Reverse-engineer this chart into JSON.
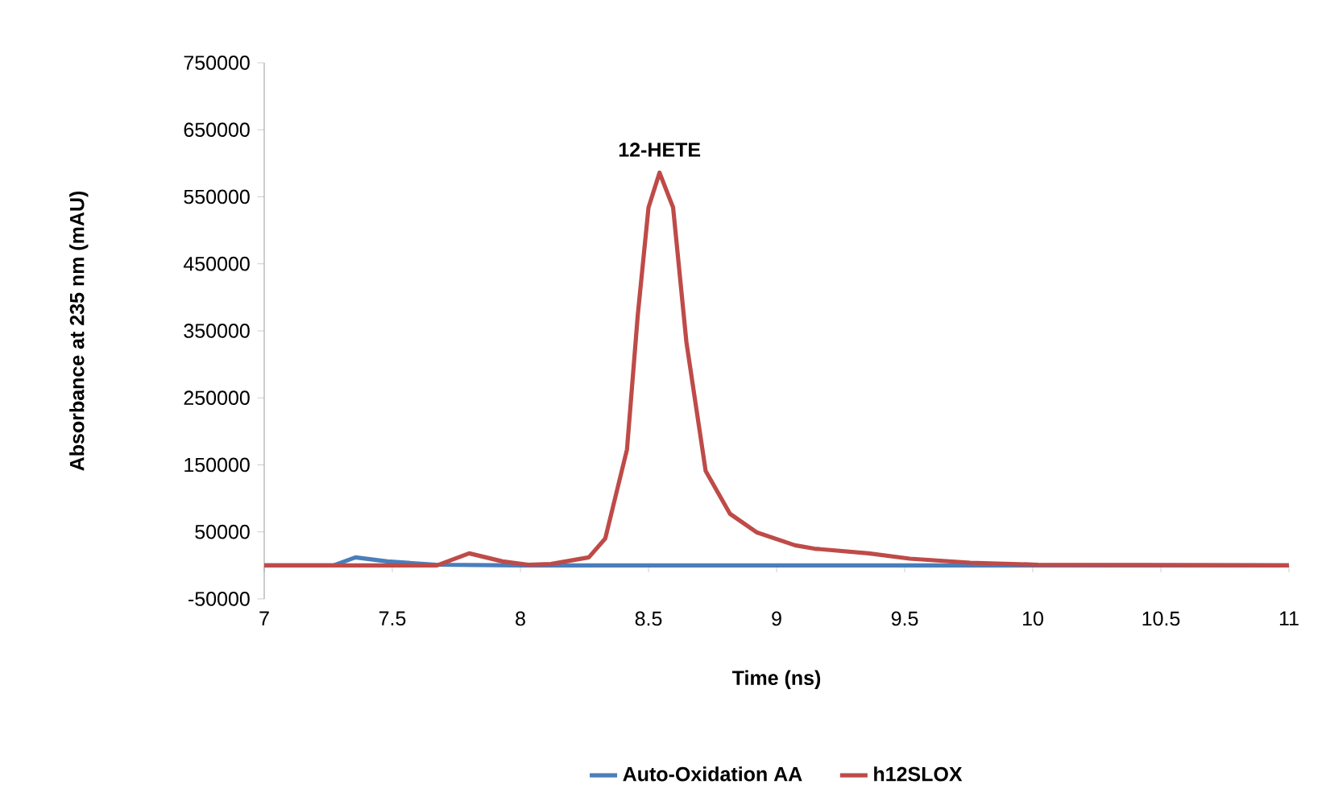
{
  "chart_data": {
    "type": "line",
    "xlabel": "Time (ns)",
    "ylabel": "Absorbance at 235 nm (mAU)",
    "xlim": [
      7,
      11
    ],
    "xticks": [
      7,
      7.5,
      8,
      8.5,
      9,
      9.5,
      10,
      10.5,
      11
    ],
    "ylim": [
      -50000,
      750000
    ],
    "yticks": [
      -50000,
      50000,
      150000,
      250000,
      350000,
      450000,
      550000,
      650000,
      750000
    ],
    "grid": false,
    "legend": "bottom",
    "marker": "none",
    "line_style": "solid",
    "annotations": [
      {
        "text": "12-HETE",
        "x": 8.543,
        "y": 585000
      }
    ],
    "series": [
      {
        "name": "Auto-Oxidation AA",
        "color": "#4a7ebb",
        "x": [
          7,
          7.27,
          7.356,
          7.48,
          7.67,
          8,
          9,
          10,
          11
        ],
        "values": [
          0,
          0,
          12000,
          6000,
          1000,
          0,
          0,
          0,
          0
        ]
      },
      {
        "name": "h12SLOX",
        "color": "#be4b48",
        "x": [
          7,
          7.674,
          7.8,
          7.93,
          8.03,
          8.119,
          8.267,
          8.331,
          8.416,
          8.458,
          8.5,
          8.543,
          8.596,
          8.648,
          8.723,
          8.818,
          8.924,
          9.072,
          9.147,
          9.359,
          9.52,
          9.756,
          10.02,
          11
        ],
        "values": [
          0,
          0,
          18000,
          6000,
          1000,
          2000,
          12000,
          40000,
          173000,
          373000,
          534000,
          586000,
          534000,
          333000,
          141000,
          77000,
          49000,
          30000,
          25000,
          18000,
          10000,
          4000,
          1000,
          0
        ]
      }
    ]
  }
}
